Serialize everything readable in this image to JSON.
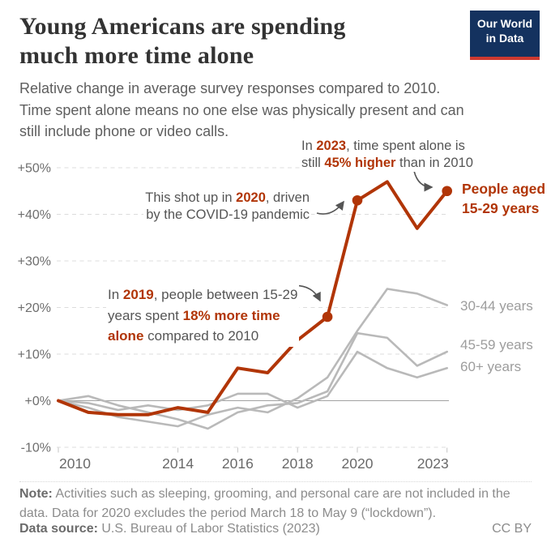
{
  "header": {
    "title_lines": [
      "Young Americans are spending",
      "much more time alone"
    ],
    "subtitle_lines": [
      "Relative change in average survey responses compared to 2010.",
      "Time spent alone means no one else was physically present and can",
      "still include phone or video calls."
    ]
  },
  "logo": {
    "line1": "Our World",
    "line2": "in Data",
    "navy": "#14325f",
    "red": "#ce3a30"
  },
  "chart_data": {
    "type": "line",
    "x": [
      2010,
      2011,
      2012,
      2013,
      2014,
      2015,
      2016,
      2017,
      2018,
      2019,
      2020,
      2021,
      2022,
      2023
    ],
    "series": [
      {
        "name": "People aged 15-29 years",
        "label_lines": [
          "People aged",
          "15-29 years"
        ],
        "color": "#b13507",
        "width": 4,
        "emphasis": true,
        "marker_years": [
          2019,
          2020,
          2023
        ],
        "values": [
          0,
          -2.5,
          -3,
          -3,
          -1.5,
          -2.5,
          7,
          6,
          13,
          18,
          43,
          47,
          37,
          45
        ]
      },
      {
        "name": "30-44 years",
        "label_lines": [
          "30-44 years"
        ],
        "color": "#b9b9b9",
        "width": 2.6,
        "values": [
          0,
          -1.5,
          -3.5,
          -4.5,
          -5.5,
          -3,
          -1.5,
          -2.5,
          0.5,
          5,
          15,
          24,
          23,
          20.5
        ]
      },
      {
        "name": "45-59 years",
        "label_lines": [
          "45-59 years"
        ],
        "color": "#b9b9b9",
        "width": 2.6,
        "values": [
          0,
          1,
          -1,
          -2.5,
          -4,
          -6,
          -2.5,
          -1,
          -0.5,
          2,
          14.5,
          13.5,
          7.5,
          10.5
        ]
      },
      {
        "name": "60+ years",
        "label_lines": [
          "60+ years"
        ],
        "color": "#b9b9b9",
        "width": 2.6,
        "values": [
          0,
          -0.5,
          -2,
          -1,
          -2,
          -1,
          1.5,
          1.5,
          -1.5,
          1,
          10.5,
          7,
          5,
          7
        ]
      }
    ],
    "ylim": [
      -10,
      50
    ],
    "y_ticks": [
      {
        "v": 50,
        "label": "+50%"
      },
      {
        "v": 40,
        "label": "+40%"
      },
      {
        "v": 30,
        "label": "+30%"
      },
      {
        "v": 20,
        "label": "+20%"
      },
      {
        "v": 10,
        "label": "+10%"
      },
      {
        "v": 0,
        "label": "+0%"
      },
      {
        "v": -10,
        "label": "-10%"
      }
    ],
    "x_ticks": [
      {
        "v": 2010,
        "label": "2010"
      },
      {
        "v": 2014,
        "label": "2014"
      },
      {
        "v": 2016,
        "label": "2016"
      },
      {
        "v": 2018,
        "label": "2018"
      },
      {
        "v": 2020,
        "label": "2020"
      },
      {
        "v": 2023,
        "label": "2023"
      }
    ],
    "grid": "horizontal-dashed",
    "legend_position": "right-inline-labels"
  },
  "annotations": {
    "a2023": {
      "lines": [
        [
          {
            "t": "In "
          },
          {
            "t": "2023",
            "em": true
          },
          {
            "t": ", time spent alone is"
          }
        ],
        [
          {
            "t": "still "
          },
          {
            "t": "45% higher",
            "em": true
          },
          {
            "t": " than in 2010"
          }
        ]
      ]
    },
    "a2020": {
      "lines": [
        [
          {
            "t": "This shot up in "
          },
          {
            "t": "2020",
            "em": true
          },
          {
            "t": ", driven"
          }
        ],
        [
          {
            "t": "by the COVID-19 pandemic"
          }
        ]
      ]
    },
    "a2019": {
      "lines": [
        [
          {
            "t": "In "
          },
          {
            "t": "2019",
            "em": true
          },
          {
            "t": ", people between 15-29"
          }
        ],
        [
          {
            "t": "years spent "
          },
          {
            "t": "18% more time",
            "em": true
          }
        ],
        [
          {
            "t": "alone",
            "em": true
          },
          {
            "t": " compared to 2010"
          }
        ]
      ]
    }
  },
  "footer": {
    "note_lines": [
      [
        {
          "t": "Note:",
          "b": true
        },
        {
          "t": " Activities such as sleeping, grooming, and personal care are not included in the"
        }
      ],
      [
        {
          "t": "data. Data for 2020 excludes the period March 18 to May 9 (“lockdown”)."
        }
      ]
    ],
    "source_line": [
      {
        "t": "Data source:",
        "b": true
      },
      {
        "t": " U.S. Bureau of Labor Statistics (2023)"
      }
    ],
    "license": "CC BY"
  },
  "colors": {
    "accent_red": "#b13507",
    "grey_line": "#b9b9b9",
    "grid": "#dcdcdc",
    "zero_line": "#a2a2a2",
    "axis_text": "#6e6e6e",
    "annotation_text": "#555555"
  }
}
